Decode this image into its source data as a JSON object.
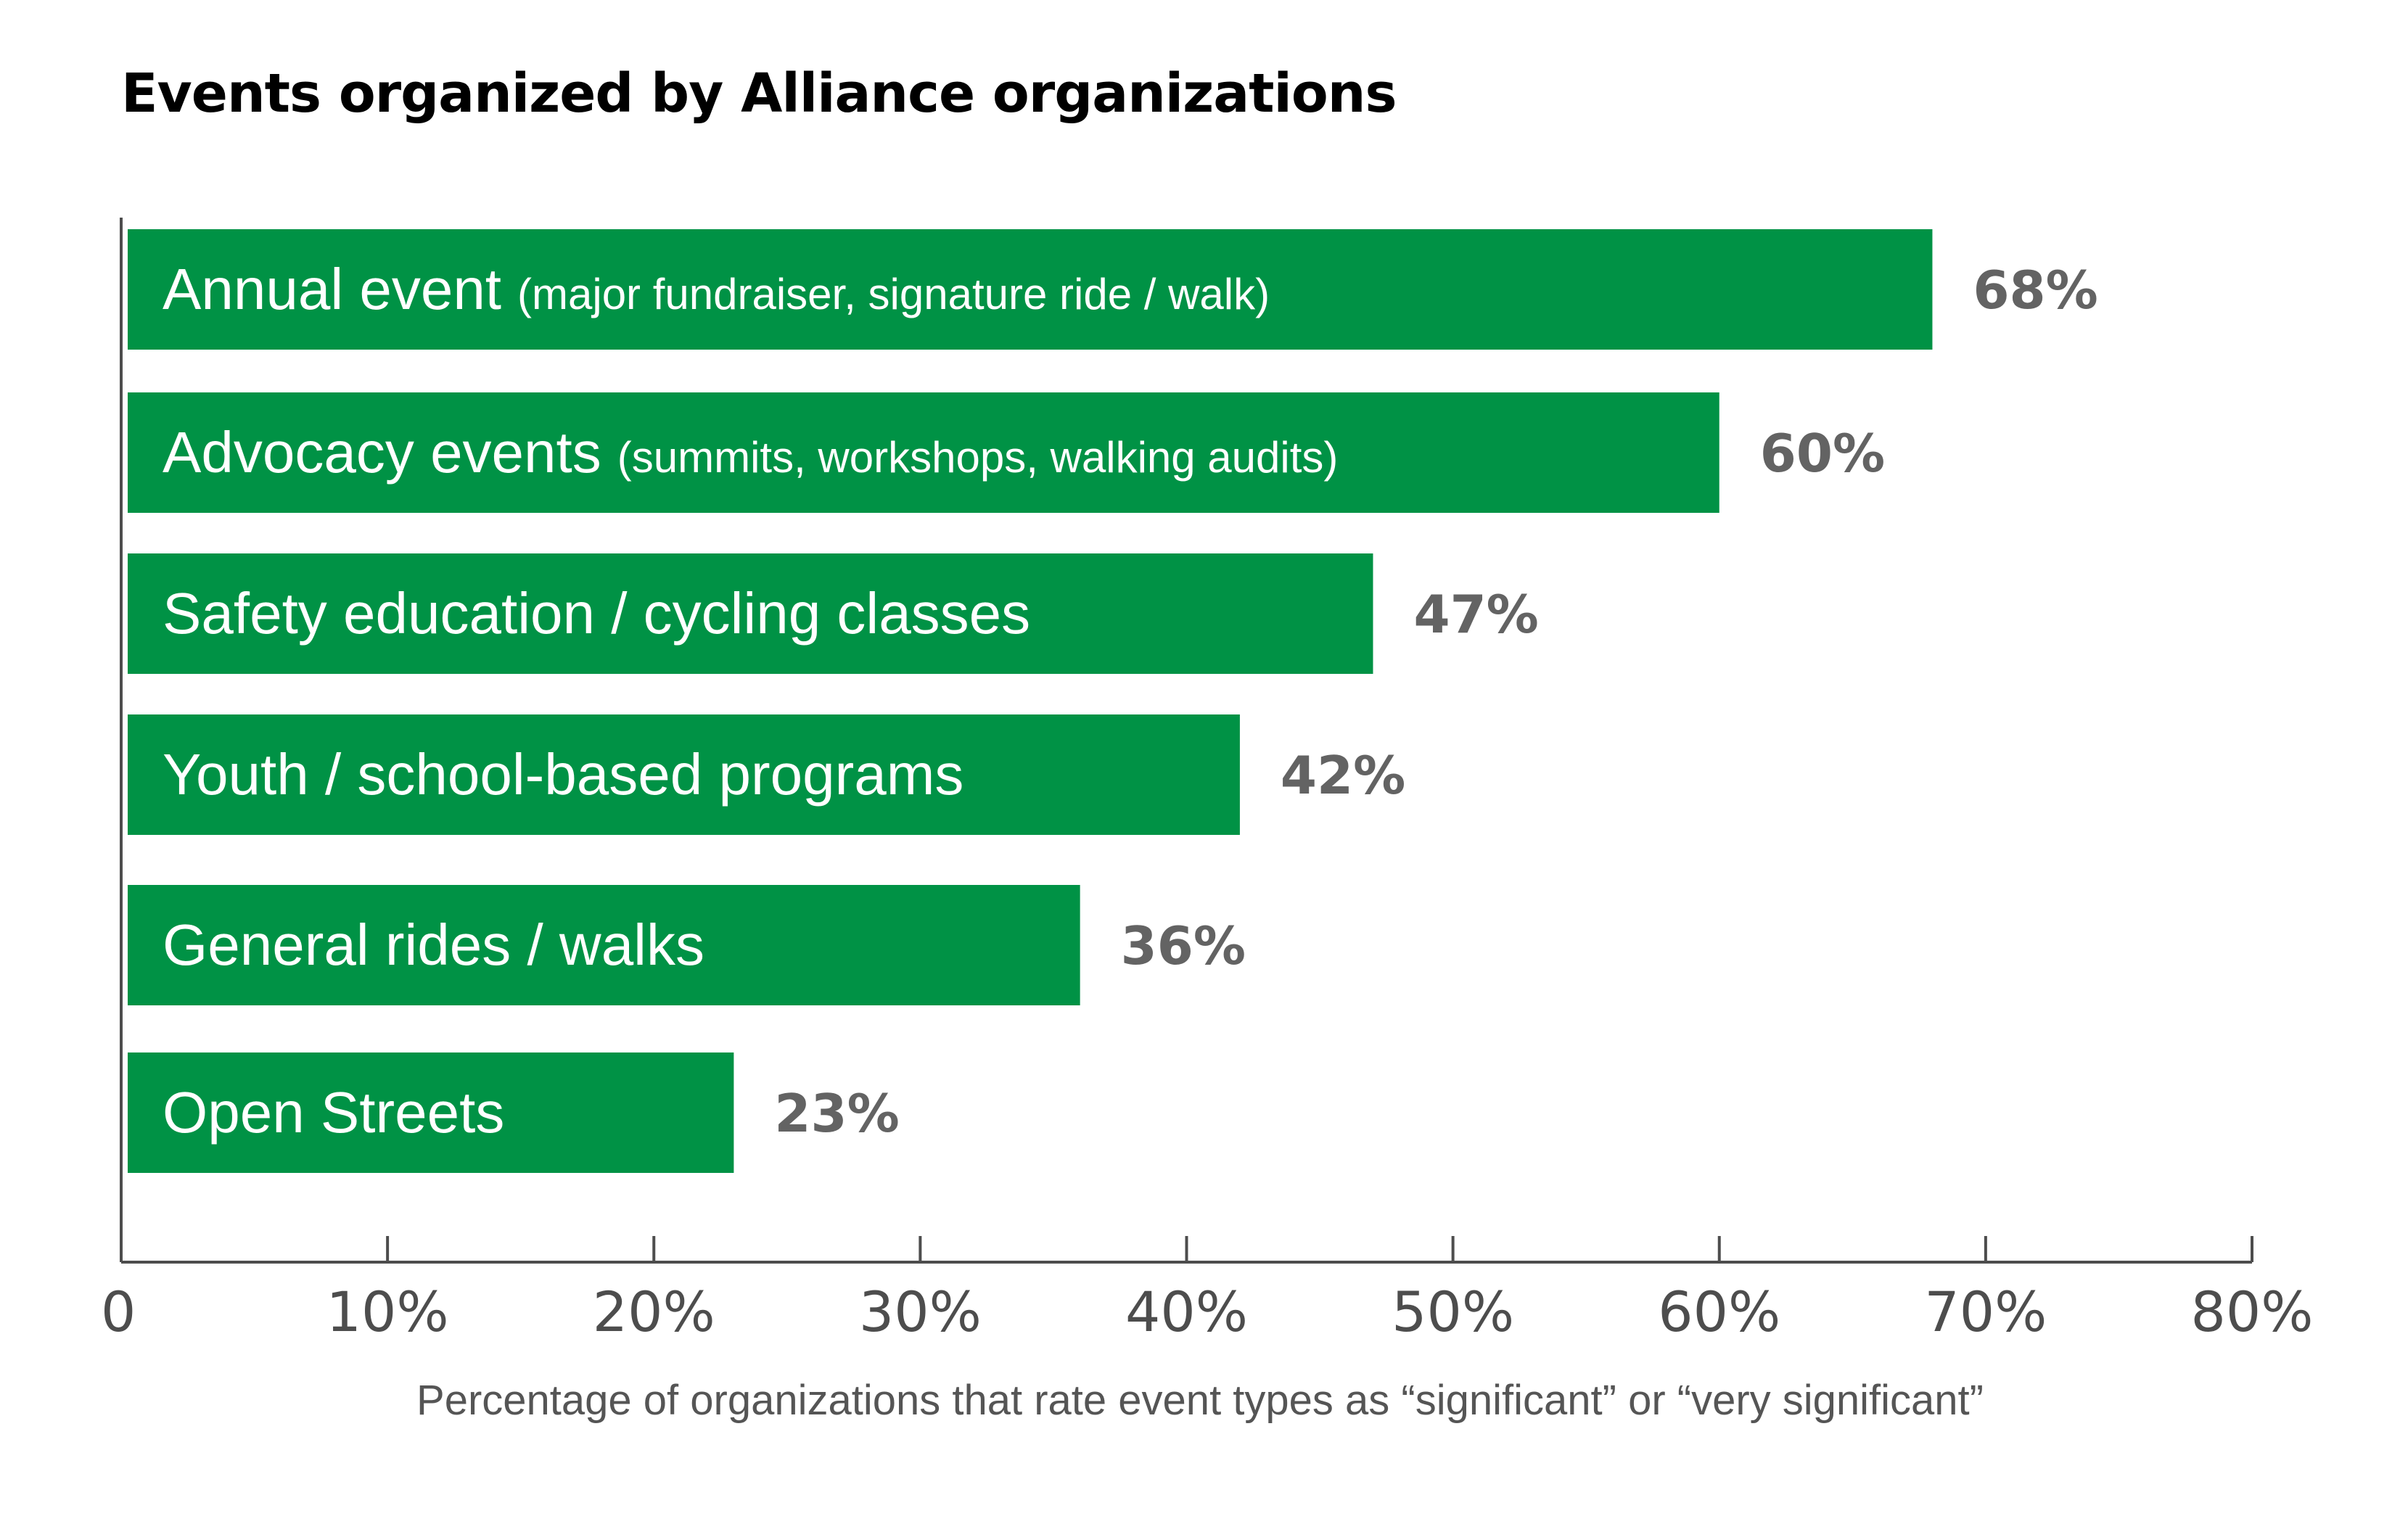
{
  "title": "Events organized by Alliance organizations",
  "colors": {
    "bar": "#009245",
    "value_text": "#636363",
    "axis": "#4d4d4d"
  },
  "chart_data": {
    "type": "bar",
    "orientation": "horizontal",
    "title": "Events organized by Alliance organizations",
    "categories": [
      {
        "label": "Annual event",
        "detail": "(major fundraiser, signature ride / walk)"
      },
      {
        "label": "Advocacy events",
        "detail": "(summits, workshops, walking audits)"
      },
      {
        "label": "Safety education / cycling classes",
        "detail": ""
      },
      {
        "label": "Youth / school-based programs",
        "detail": ""
      },
      {
        "label": "General  rides / walks",
        "detail": ""
      },
      {
        "label": "Open Streets",
        "detail": ""
      }
    ],
    "values": [
      68,
      60,
      47,
      42,
      36,
      23
    ],
    "value_labels": [
      "68%",
      "60%",
      "47%",
      "42%",
      "36%",
      "23%"
    ],
    "xlabel": "Percentage of organizations that rate event types as “significant” or “very significant”",
    "ylabel": "",
    "xlim": [
      0,
      80
    ],
    "ticks": [
      0,
      10,
      20,
      30,
      40,
      50,
      60,
      70,
      80
    ],
    "tick_labels": [
      "0",
      "10%",
      "20%",
      "30%",
      "40%",
      "50%",
      "60%",
      "70%",
      "80%"
    ],
    "grid": false,
    "legend": "none"
  }
}
